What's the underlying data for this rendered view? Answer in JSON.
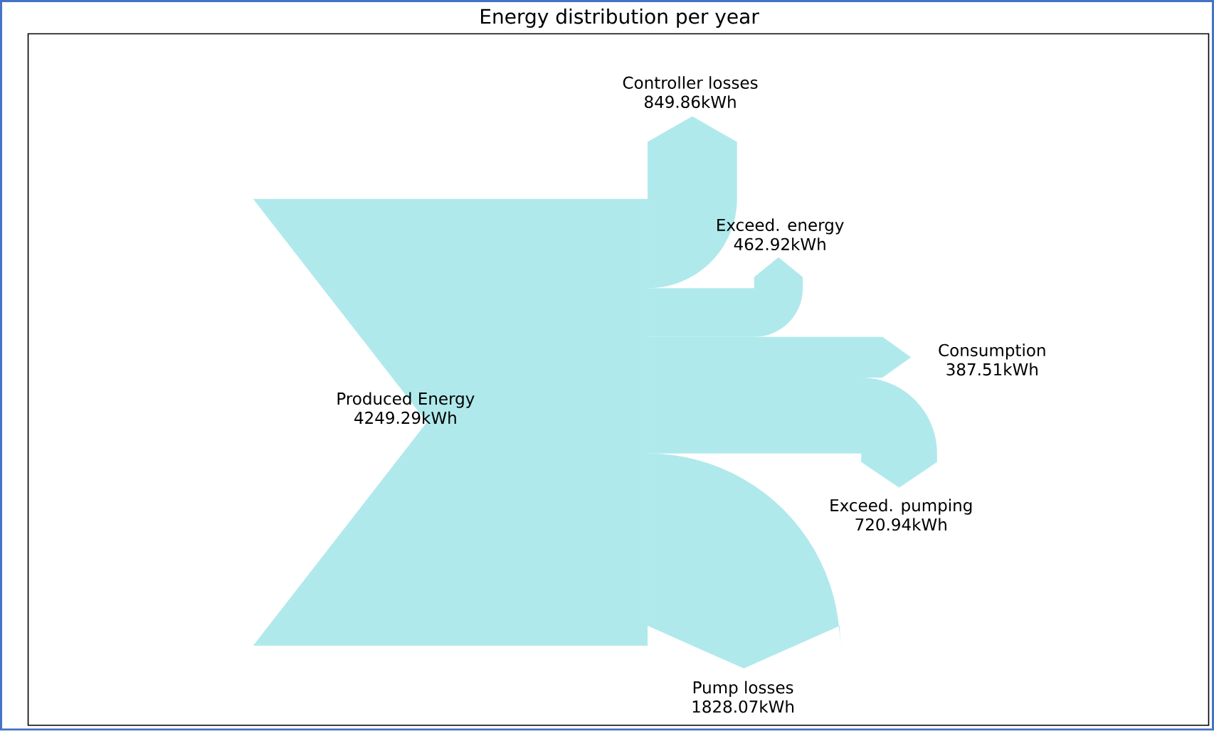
{
  "chart_data": {
    "type": "other",
    "title": "Energy distribution per year",
    "color": "#b0e9ec",
    "categories": [
      "Produced Energy",
      "Controller losses",
      "Exceed. energy",
      "Consumption",
      "Exceed. pumping",
      "Pump losses"
    ],
    "values": [
      4249.29,
      849.86,
      462.92,
      387.51,
      720.94,
      1828.07
    ],
    "value_labels": [
      "4249.29kWh",
      "849.86kWh",
      "462.92kWh",
      "387.51kWh",
      "720.94kWh",
      "1828.07kWh"
    ]
  }
}
